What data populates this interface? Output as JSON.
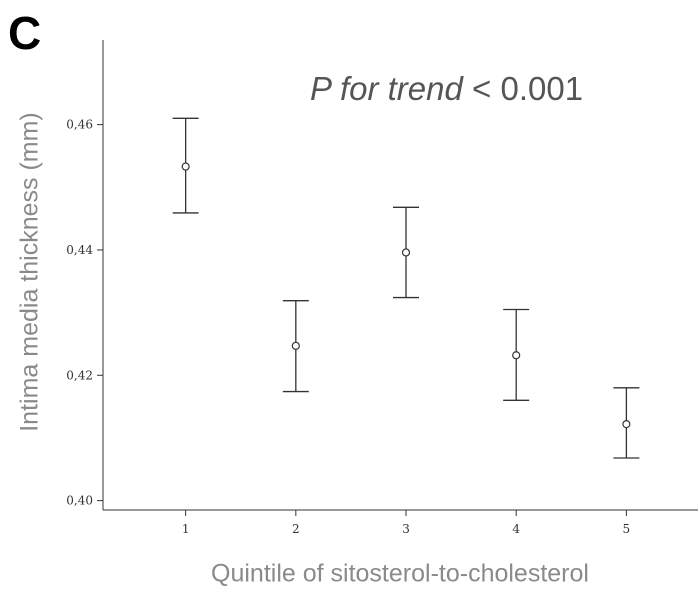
{
  "panel_label": "C",
  "annotation": {
    "italic_part": "P for trend",
    "rest": " < 0.001"
  },
  "chart_data": {
    "type": "scatter",
    "title": "",
    "xlabel": "Quintile of sitosterol-to-cholesterol",
    "ylabel": "Intima media thickness (mm)",
    "x": [
      1,
      2,
      3,
      4,
      5
    ],
    "x_tick_labels": [
      "1",
      "2",
      "3",
      "4",
      "5"
    ],
    "y_ticks": [
      0.4,
      0.42,
      0.44,
      0.46
    ],
    "y_tick_labels": [
      "0,40",
      "0,42",
      "0,44",
      "0,46"
    ],
    "ylim": [
      0.3985,
      0.4735
    ],
    "xlim": [
      0.25,
      5.65
    ],
    "series": [
      {
        "mean": [
          0.4533,
          0.4247,
          0.4396,
          0.4232,
          0.4122
        ],
        "lower": [
          0.4459,
          0.4174,
          0.4324,
          0.416,
          0.4068
        ],
        "upper": [
          0.461,
          0.4319,
          0.4468,
          0.4305,
          0.418
        ]
      }
    ],
    "error_bars": true,
    "grid": false,
    "colors": {
      "marks": "#333333",
      "axis_label": "#8a8a8a",
      "annotation": "#555555"
    }
  }
}
